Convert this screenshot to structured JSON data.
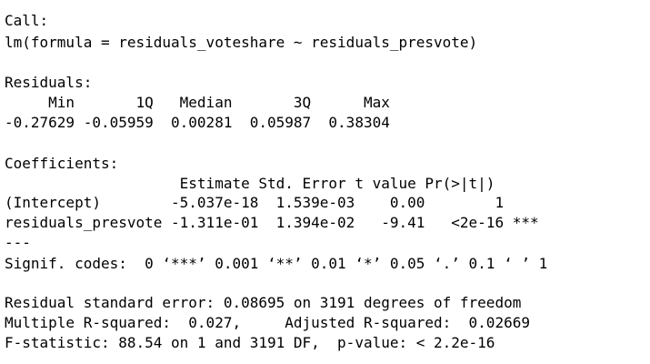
{
  "output": {
    "call_header": "Call:",
    "call_formula": "lm(formula = residuals_voteshare ~ residuals_presvote)",
    "residuals_header": "Residuals:",
    "residuals_labels": "     Min       1Q   Median       3Q      Max ",
    "residuals_values": "-0.27629 -0.05959  0.00281  0.05987  0.38304 ",
    "coefficients_header": "Coefficients:",
    "coef_columns": "                    Estimate Std. Error t value Pr(>|t|)    ",
    "coef_row_intercept": "(Intercept)        -5.037e-18  1.539e-03    0.00        1    ",
    "coef_row_presvote": "residuals_presvote -1.311e-01  1.394e-02   -9.41   <2e-16 ***",
    "separator": "---",
    "signif_codes": "Signif. codes:  0 ‘***’ 0.001 ‘**’ 0.01 ‘*’ 0.05 ‘.’ 0.1 ‘ ’ 1",
    "residual_se": "Residual standard error: 0.08695 on 3191 degrees of freedom",
    "r_squared": "Multiple R-squared:  0.027,\tAdjusted R-squared:  0.02669 ",
    "f_statistic": "F-statistic: 88.54 on 1 and 3191 DF,  p-value: < 2.2e-16"
  }
}
